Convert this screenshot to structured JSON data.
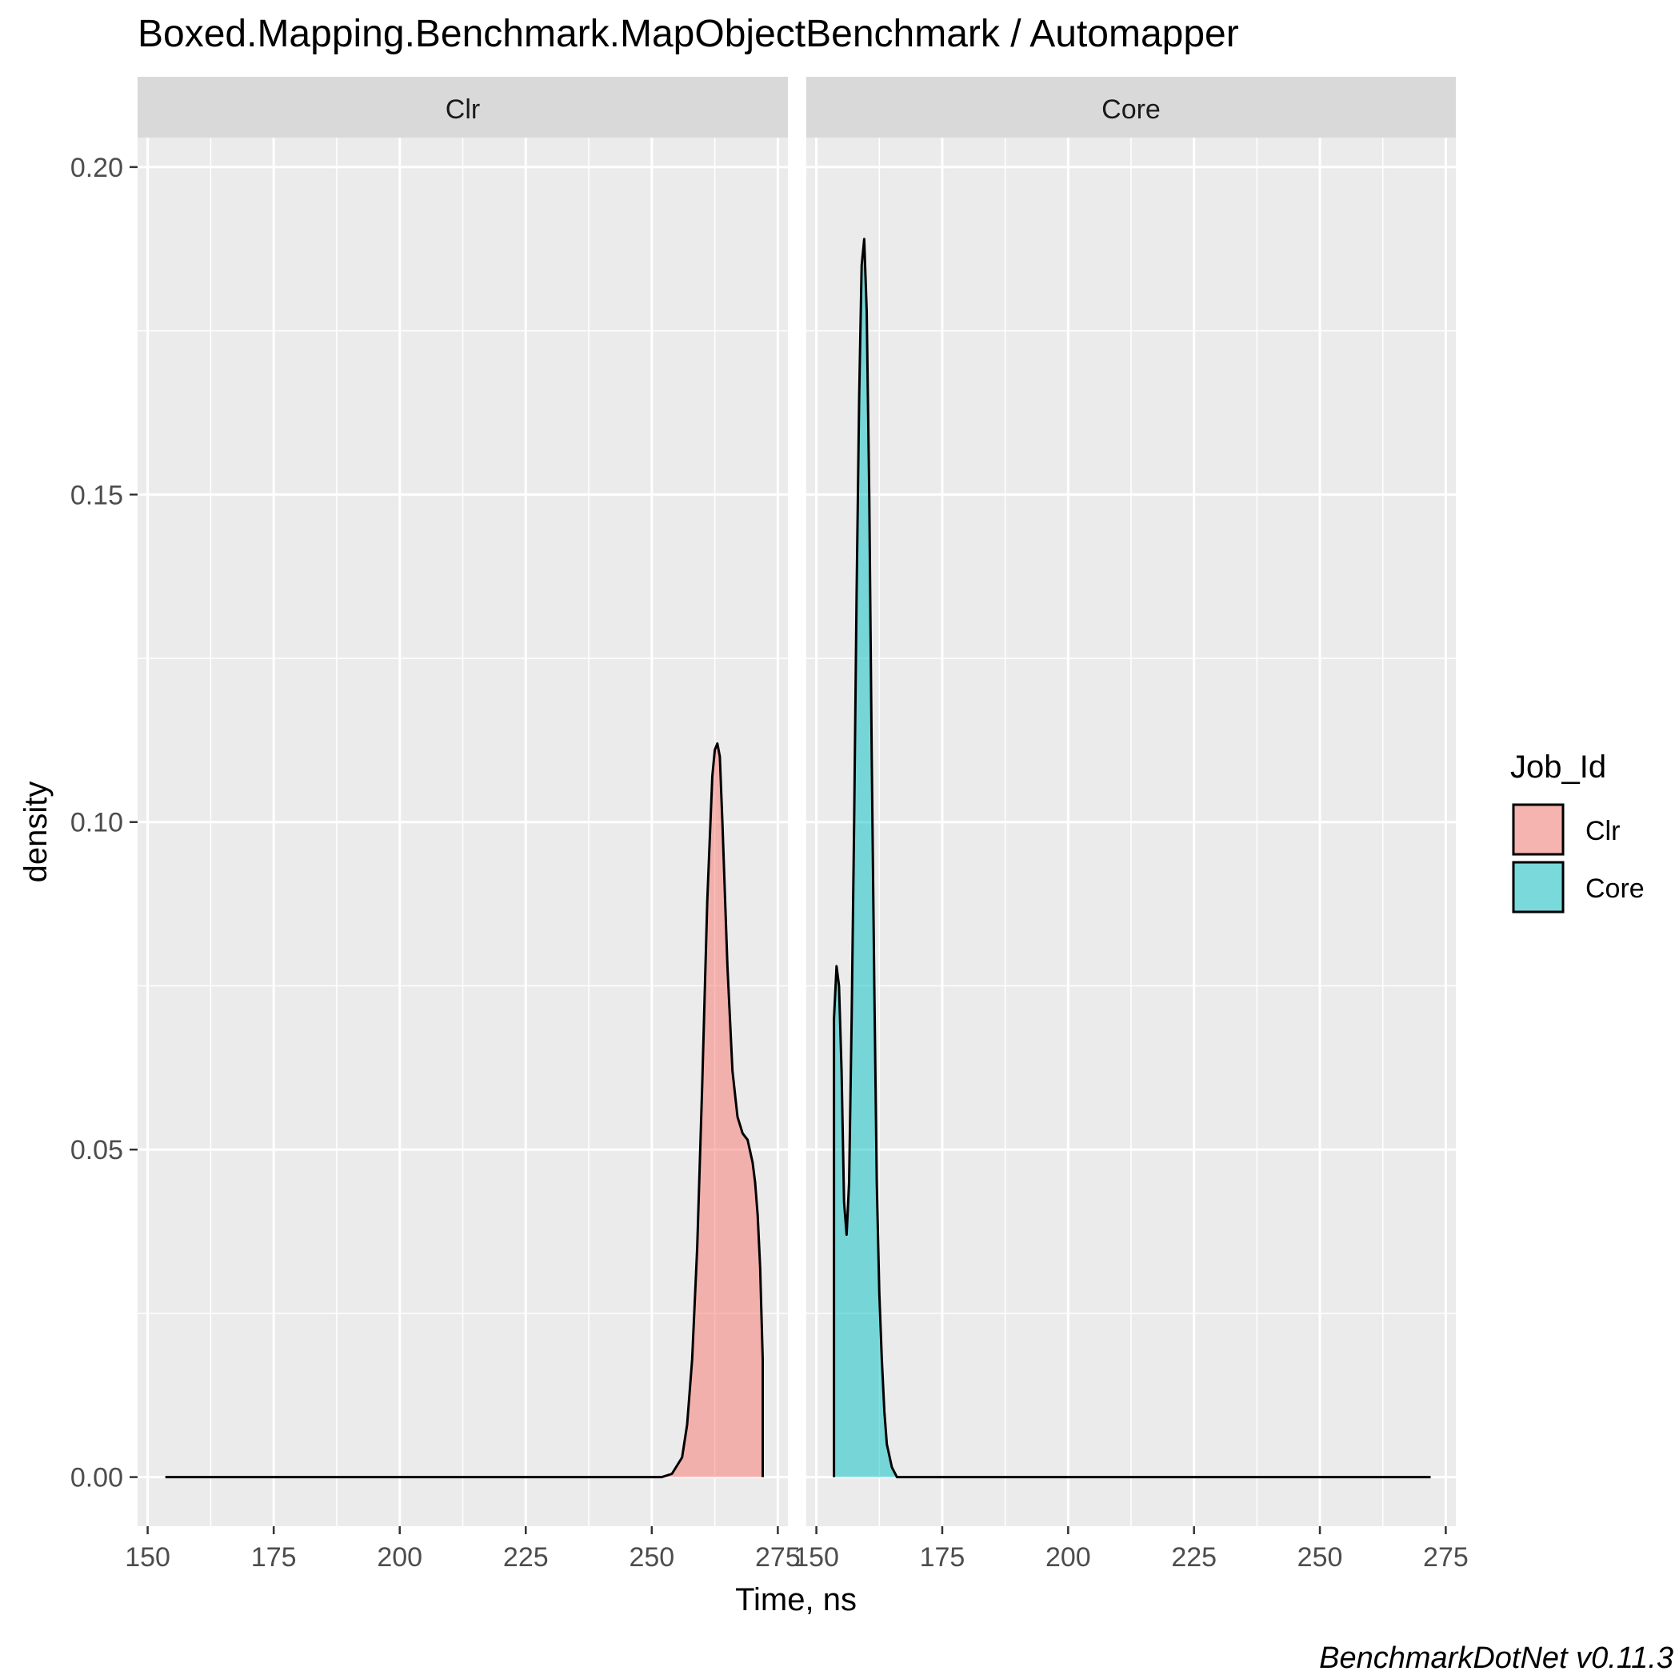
{
  "chart_data": {
    "type": "area",
    "title": "Boxed.Mapping.Benchmark.MapObjectBenchmark / Automapper",
    "xlabel": "Time, ns",
    "ylabel": "density",
    "caption": "BenchmarkDotNet v0.11.3",
    "xlim": [
      148,
      277
    ],
    "ylim": [
      -0.0075,
      0.2045
    ],
    "x_ticks": [
      "150",
      "175",
      "200",
      "225",
      "250",
      "275"
    ],
    "y_ticks": [
      "0.00",
      "0.05",
      "0.10",
      "0.15",
      "0.20"
    ],
    "grid": true,
    "legend_position": "right",
    "legend": {
      "title": "Job_Id",
      "items": [
        {
          "label": "Clr",
          "color": "#F8766D"
        },
        {
          "label": "Core",
          "color": "#00BFC4"
        }
      ]
    },
    "facets": [
      {
        "label": "Clr",
        "color": "#F8766D",
        "x": [
          153.5,
          200,
          245,
          252,
          254,
          256,
          257,
          258,
          259,
          260,
          261,
          262,
          262.5,
          263,
          263.5,
          264,
          265,
          266,
          267,
          268,
          268.5,
          269,
          270,
          270.5,
          271,
          271.5,
          272,
          272,
          272
        ],
        "y": [
          0,
          0,
          0,
          0,
          0.0005,
          0.003,
          0.008,
          0.018,
          0.035,
          0.06,
          0.088,
          0.107,
          0.111,
          0.112,
          0.11,
          0.1,
          0.078,
          0.062,
          0.055,
          0.0525,
          0.052,
          0.0515,
          0.048,
          0.045,
          0.04,
          0.032,
          0.018,
          0.005,
          0
        ]
      },
      {
        "label": "Core",
        "color": "#00BFC4",
        "x": [
          153.5,
          153.5,
          154,
          154.5,
          155,
          155.5,
          156,
          156.5,
          157,
          157.5,
          158,
          158.5,
          159,
          159.5,
          160,
          160.5,
          161,
          161.5,
          162,
          162.5,
          163,
          163.5,
          164,
          165,
          166,
          200,
          272
        ],
        "y": [
          0,
          0.07,
          0.078,
          0.075,
          0.062,
          0.042,
          0.037,
          0.045,
          0.07,
          0.1,
          0.135,
          0.165,
          0.185,
          0.189,
          0.178,
          0.15,
          0.11,
          0.075,
          0.045,
          0.028,
          0.018,
          0.01,
          0.005,
          0.0015,
          0,
          0,
          0
        ]
      }
    ]
  }
}
